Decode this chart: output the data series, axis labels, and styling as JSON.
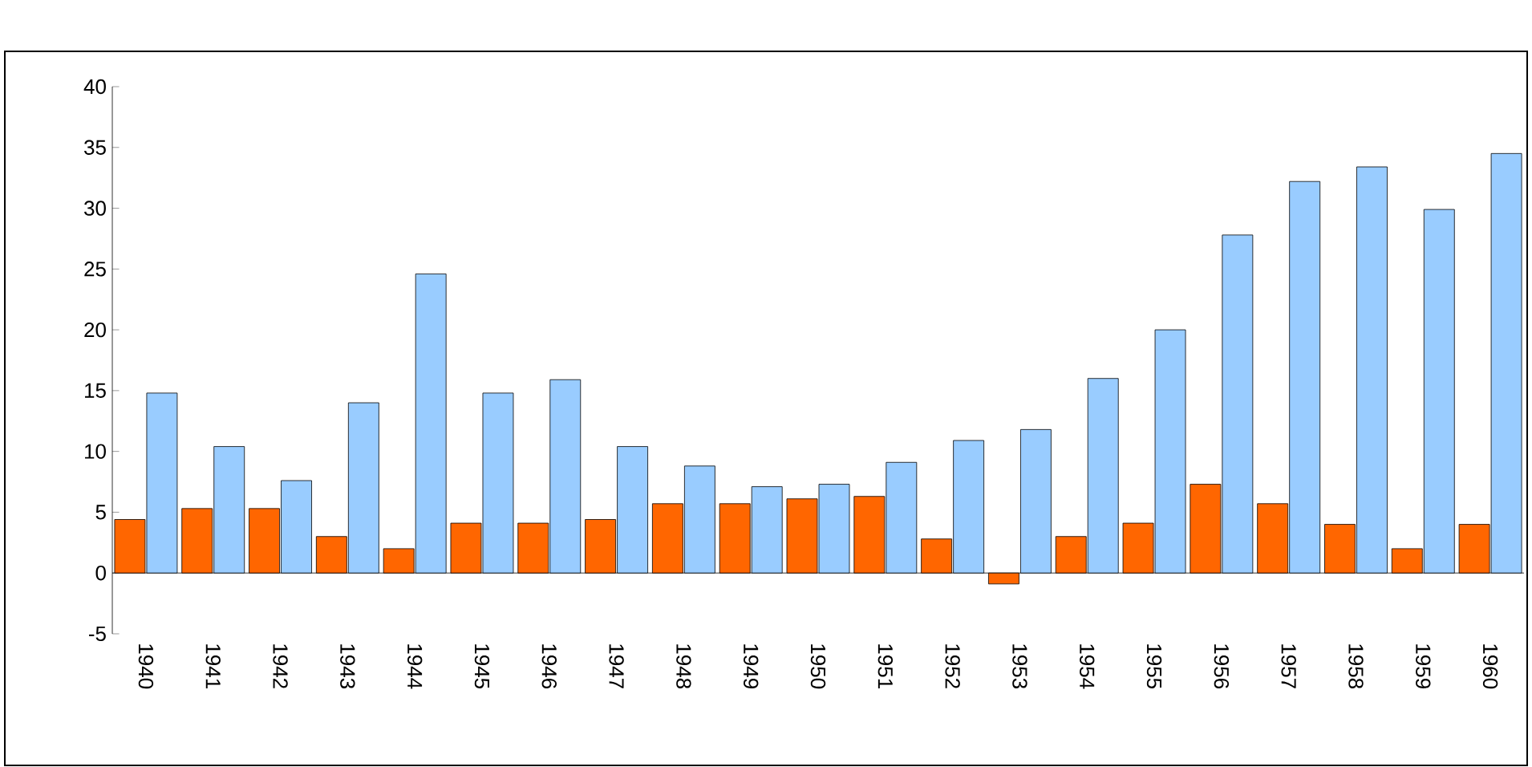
{
  "chart_data": {
    "type": "bar",
    "categories": [
      "1940",
      "1941",
      "1942",
      "1943",
      "1944",
      "1945",
      "1946",
      "1947",
      "1948",
      "1949",
      "1950",
      "1951",
      "1952",
      "1953",
      "1954",
      "1955",
      "1956",
      "1957",
      "1958",
      "1959",
      "1960"
    ],
    "series": [
      {
        "color": "#ff6600",
        "values": [
          4.4,
          5.3,
          5.3,
          3.0,
          2.0,
          4.1,
          4.1,
          4.4,
          5.7,
          5.7,
          6.1,
          6.3,
          2.8,
          -0.9,
          3.0,
          4.1,
          7.3,
          5.7,
          4.0,
          2.0,
          4.0
        ]
      },
      {
        "color": "#99ccff",
        "values": [
          14.8,
          10.4,
          7.6,
          14.0,
          24.6,
          14.8,
          15.9,
          10.4,
          8.8,
          7.1,
          7.3,
          9.1,
          10.9,
          11.8,
          16.0,
          20.0,
          27.8,
          32.2,
          33.4,
          29.9,
          34.5
        ]
      }
    ],
    "ylim": [
      -5,
      40
    ],
    "yticks": [
      -5,
      0,
      5,
      10,
      15,
      20,
      25,
      30,
      35,
      40
    ]
  }
}
